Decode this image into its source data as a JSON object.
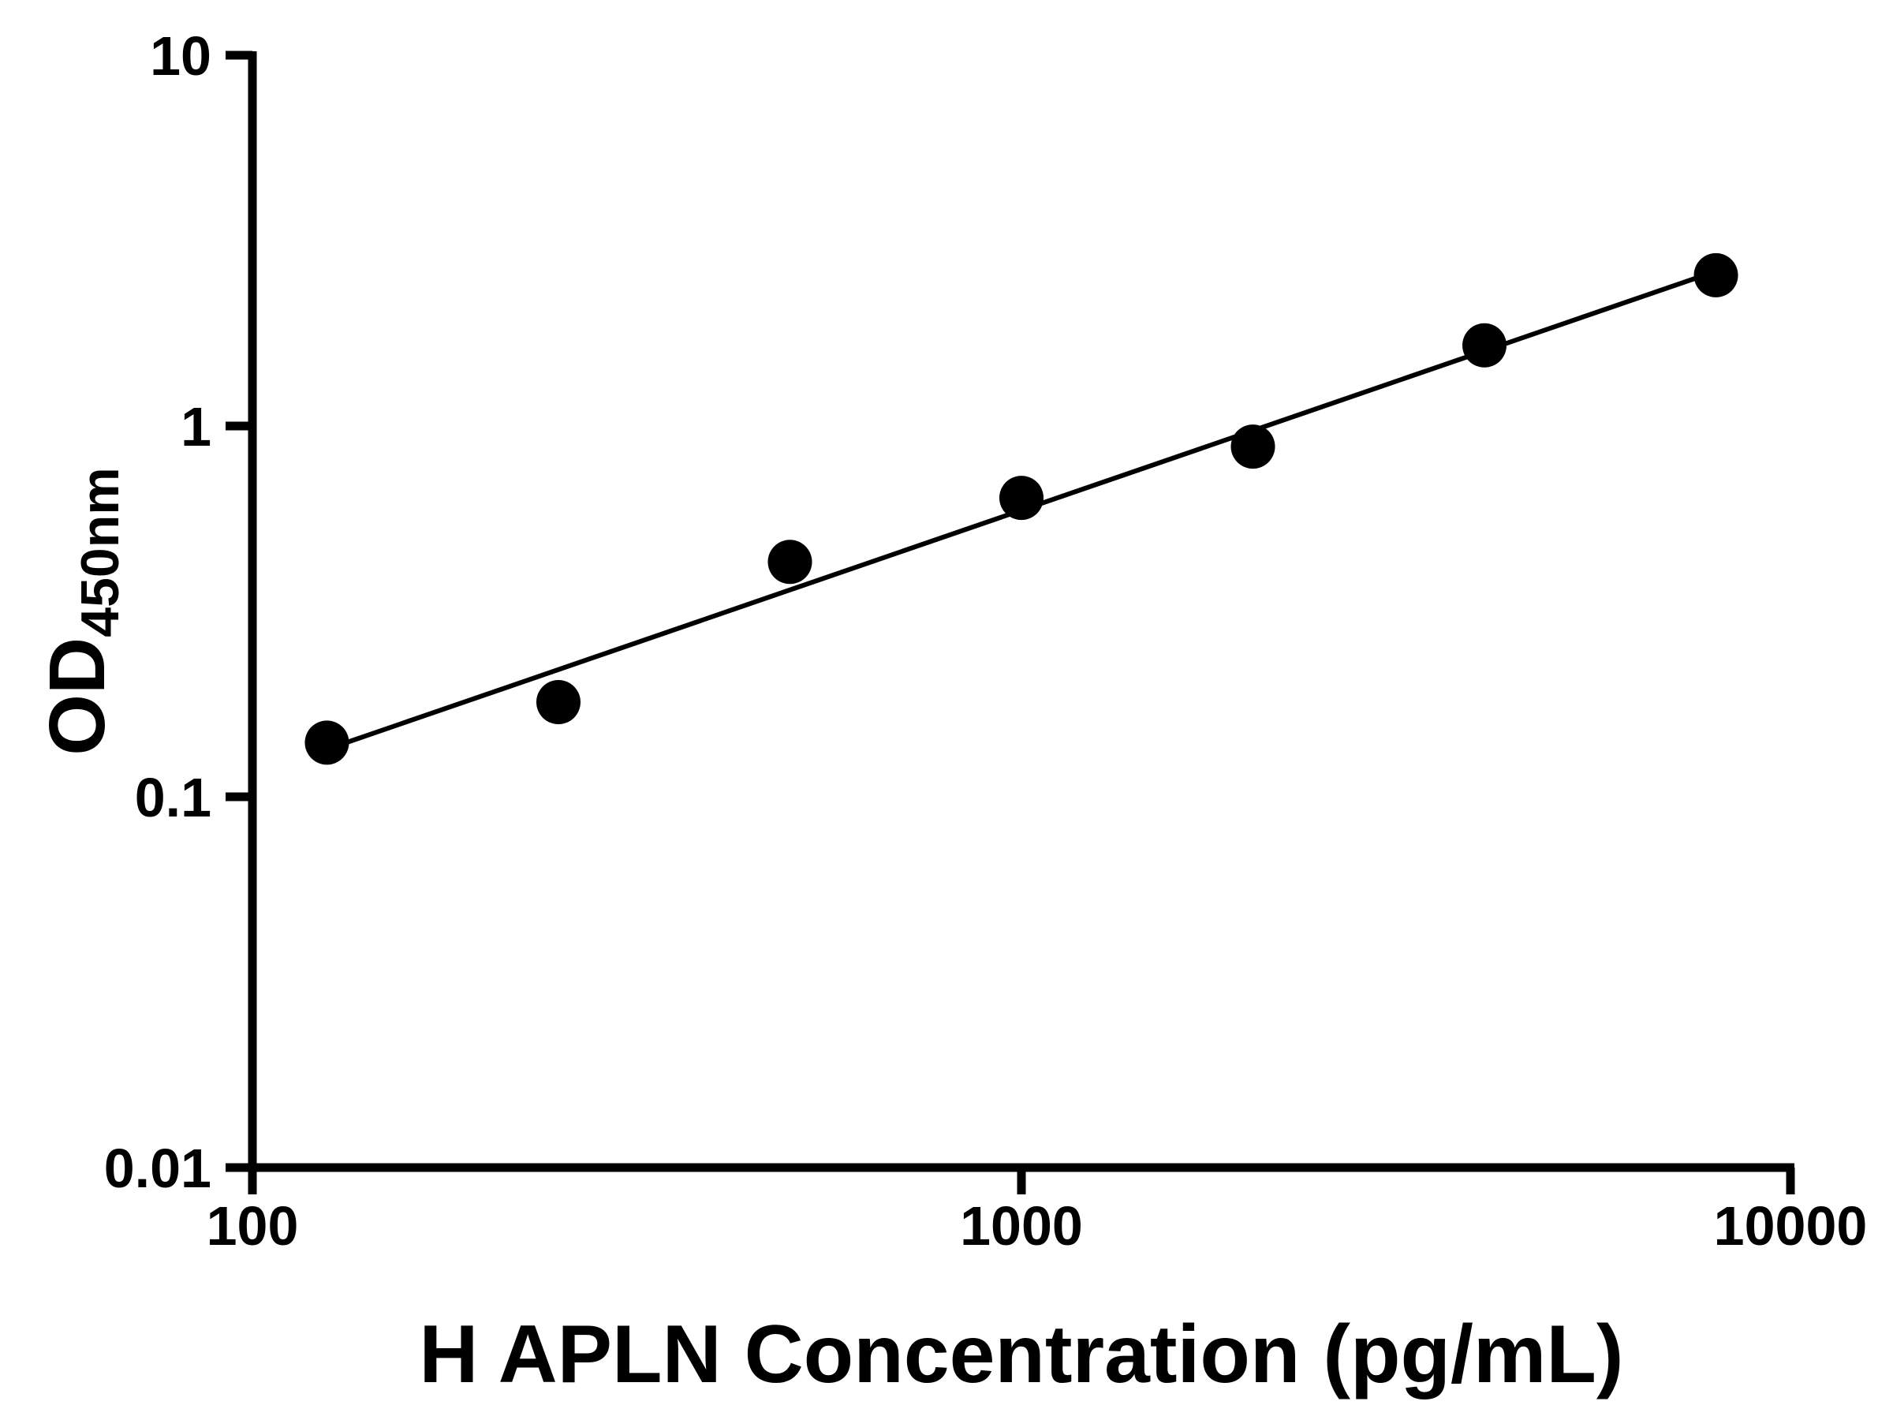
{
  "chart_data": {
    "type": "scatter",
    "title": "",
    "xlabel": "H APLN Concentration (pg/mL)",
    "ylabel": "OD450nm",
    "ylabel_main": "OD",
    "ylabel_sub": "450nm",
    "xscale": "log",
    "yscale": "log",
    "xlim": [
      100,
      10000
    ],
    "ylim": [
      0.01,
      10
    ],
    "x_ticks": [
      100,
      1000,
      10000
    ],
    "x_tick_labels": [
      "100",
      "1000",
      "10000"
    ],
    "y_ticks": [
      0.01,
      0.1,
      1,
      10
    ],
    "y_tick_labels": [
      "0.01",
      "0.1",
      "1",
      "10"
    ],
    "x": [
      125,
      250,
      500,
      1000,
      2000,
      4000,
      8000
    ],
    "y": [
      0.14,
      0.18,
      0.43,
      0.64,
      0.88,
      1.65,
      2.55
    ],
    "trendline": true,
    "fit": "linear in log-log space",
    "marker_color": "#000000",
    "line_color": "#000000",
    "axis_color": "#000000",
    "background": "#ffffff",
    "grid": false,
    "legend": ""
  }
}
